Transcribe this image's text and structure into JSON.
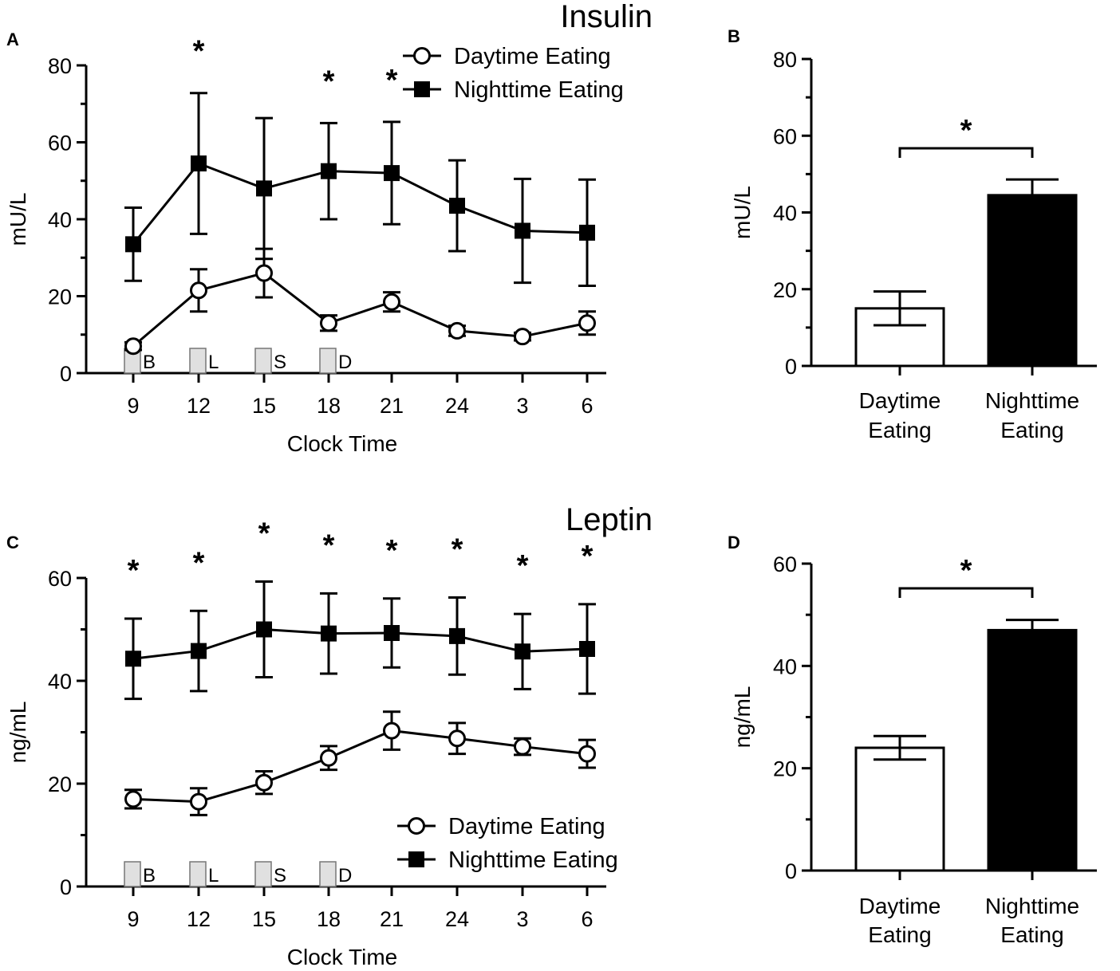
{
  "chart_data": [
    {
      "panel": "A",
      "type": "line",
      "title": "Insulin",
      "xlabel": "Clock Time",
      "ylabel": "mU/L",
      "ylim": [
        0,
        80
      ],
      "yticks": [
        0,
        20,
        40,
        60,
        80
      ],
      "categories": [
        "9",
        "12",
        "15",
        "18",
        "21",
        "24",
        "3",
        "6"
      ],
      "series": [
        {
          "name": "Daytime Eating",
          "marker": "open-circle",
          "values": [
            7,
            21.5,
            26,
            13,
            18.5,
            11,
            9.5,
            13
          ],
          "errors": [
            1,
            5.5,
            6.3,
            2,
            2.5,
            1.3,
            1,
            3
          ]
        },
        {
          "name": "Nighttime Eating",
          "marker": "filled-square",
          "values": [
            33.5,
            54.5,
            48,
            52.5,
            52,
            43.5,
            37,
            36.5
          ],
          "errors": [
            9.5,
            18.3,
            18.3,
            12.5,
            13.3,
            11.8,
            13.5,
            13.8
          ]
        }
      ],
      "significance": [
        "",
        "*",
        "",
        "*",
        "*",
        "",
        "",
        ""
      ],
      "meals": [
        {
          "at": "9",
          "label": "B"
        },
        {
          "at": "12",
          "label": "L"
        },
        {
          "at": "15",
          "label": "S"
        },
        {
          "at": "18",
          "label": "D"
        }
      ],
      "legend": [
        "Daytime Eating",
        "Nighttime Eating"
      ]
    },
    {
      "panel": "B",
      "type": "bar",
      "ylabel": "mU/L",
      "ylim": [
        0,
        80
      ],
      "yticks": [
        0,
        20,
        40,
        60,
        80
      ],
      "categories": [
        [
          "Daytime",
          "Eating"
        ],
        [
          "Nighttime",
          "Eating"
        ]
      ],
      "values": [
        15,
        44.5
      ],
      "errors": [
        4.4,
        4.1
      ],
      "fills": [
        "#ffffff",
        "#000000"
      ],
      "significance": "*"
    },
    {
      "panel": "C",
      "type": "line",
      "title": "Leptin",
      "xlabel": "Clock Time",
      "ylabel": "ng/mL",
      "ylim": [
        0,
        60
      ],
      "yticks": [
        0,
        20,
        40,
        60
      ],
      "categories": [
        "9",
        "12",
        "15",
        "18",
        "21",
        "24",
        "3",
        "6"
      ],
      "series": [
        {
          "name": "Daytime Eating",
          "marker": "open-circle",
          "values": [
            17,
            16.5,
            20.2,
            25,
            30.3,
            28.8,
            27.2,
            25.8
          ],
          "errors": [
            1.8,
            2.6,
            2.2,
            2.3,
            3.7,
            3,
            1.6,
            2.7
          ]
        },
        {
          "name": "Nighttime Eating",
          "marker": "filled-square",
          "values": [
            44.3,
            45.8,
            50,
            49.2,
            49.3,
            48.7,
            45.7,
            46.2
          ],
          "errors": [
            7.8,
            7.8,
            9.3,
            7.8,
            6.7,
            7.5,
            7.3,
            8.7
          ]
        }
      ],
      "significance": [
        "*",
        "*",
        "*",
        "*",
        "*",
        "*",
        "*",
        "*"
      ],
      "meals": [
        {
          "at": "9",
          "label": "B"
        },
        {
          "at": "12",
          "label": "L"
        },
        {
          "at": "15",
          "label": "S"
        },
        {
          "at": "18",
          "label": "D"
        }
      ],
      "legend": [
        "Daytime Eating",
        "Nighttime Eating"
      ]
    },
    {
      "panel": "D",
      "type": "bar",
      "ylabel": "ng/mL",
      "ylim": [
        0,
        60
      ],
      "yticks": [
        0,
        20,
        40,
        60
      ],
      "categories": [
        [
          "Daytime",
          "Eating"
        ],
        [
          "Nighttime",
          "Eating"
        ]
      ],
      "values": [
        24,
        47
      ],
      "errors": [
        2.3,
        2
      ],
      "fills": [
        "#ffffff",
        "#000000"
      ],
      "significance": "*"
    }
  ]
}
